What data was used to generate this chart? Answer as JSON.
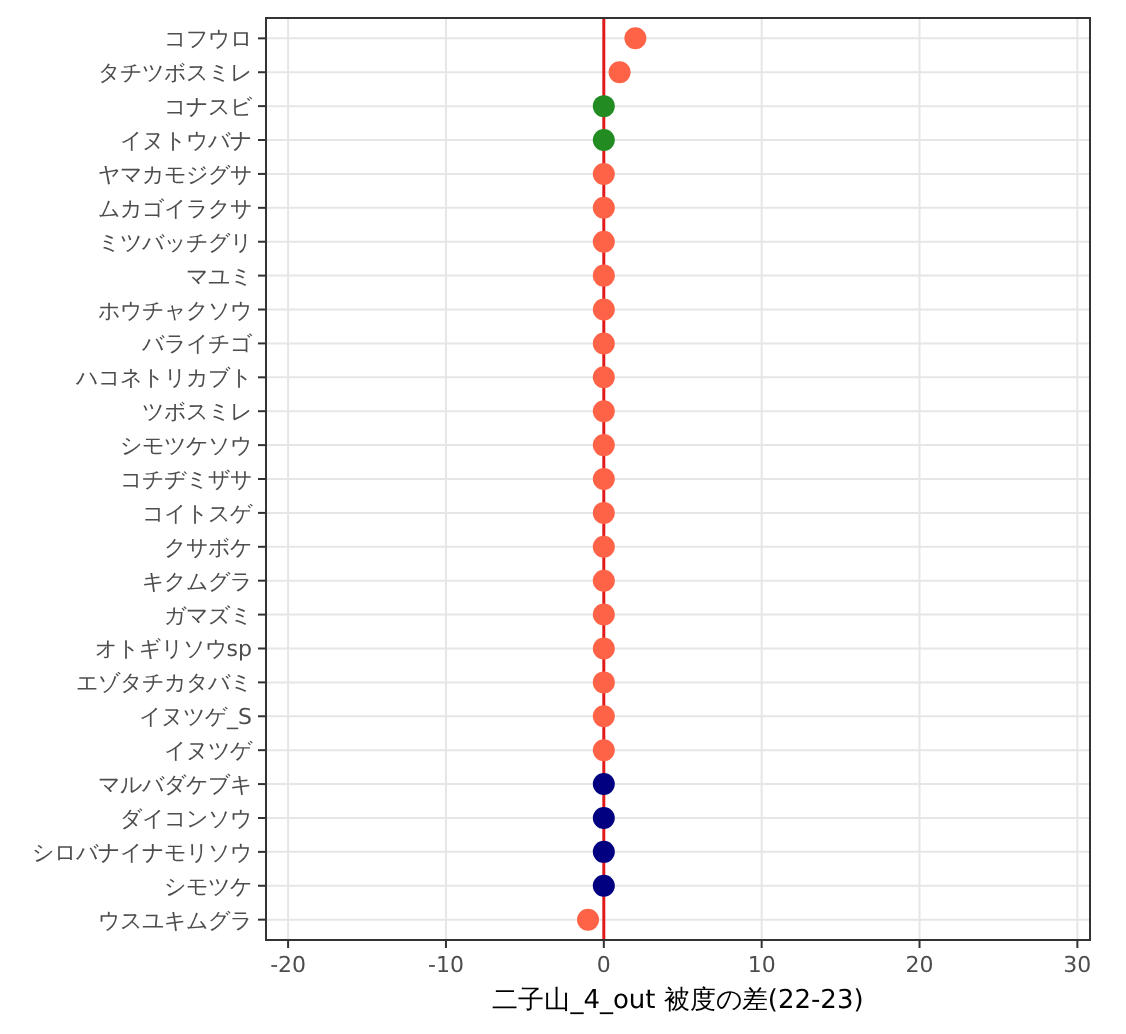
{
  "chart_data": {
    "type": "scatter",
    "orientation": "horizontal",
    "xlabel": "二子山_4_out 被度の差(22-23)",
    "categories": [
      "コフウロ",
      "タチツボスミレ",
      "コナスビ",
      "イヌトウバナ",
      "ヤマカモジグサ",
      "ムカゴイラクサ",
      "ミツバッチグリ",
      "マユミ",
      "ホウチャクソウ",
      "バライチゴ",
      "ハコネトリカブト",
      "ツボスミレ",
      "シモツケソウ",
      "コチヂミザサ",
      "コイトスゲ",
      "クサボケ",
      "キクムグラ",
      "ガマズミ",
      "オトギリソウsp",
      "エゾタチカタバミ",
      "イヌツゲ_S",
      "イヌツゲ",
      "マルバダケブキ",
      "ダイコンソウ",
      "シロバナイナモリソウ",
      "シモツケ",
      "ウスユキムグラ"
    ],
    "values": [
      2,
      1,
      0,
      0,
      0,
      0,
      0,
      0,
      0,
      0,
      0,
      0,
      0,
      0,
      0,
      0,
      0,
      0,
      0,
      0,
      0,
      0,
      0,
      0,
      0,
      0,
      -1
    ],
    "colors": [
      "#ff6347",
      "#ff6347",
      "#228b22",
      "#228b22",
      "#ff6347",
      "#ff6347",
      "#ff6347",
      "#ff6347",
      "#ff6347",
      "#ff6347",
      "#ff6347",
      "#ff6347",
      "#ff6347",
      "#ff6347",
      "#ff6347",
      "#ff6347",
      "#ff6347",
      "#ff6347",
      "#ff6347",
      "#ff6347",
      "#ff6347",
      "#ff6347",
      "#000080",
      "#000080",
      "#000080",
      "#000080",
      "#ff6347"
    ],
    "xlim": [
      -21.4,
      30.8
    ],
    "xticks": [
      -20,
      -10,
      0,
      10,
      20,
      30
    ],
    "grid": true,
    "marker": "circle",
    "ref_lines": [
      {
        "axis": "x",
        "value": 0,
        "color": "#e31a1c"
      }
    ]
  }
}
